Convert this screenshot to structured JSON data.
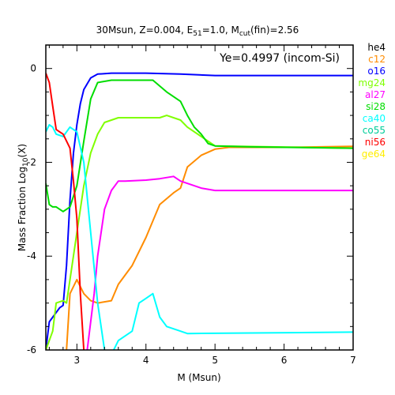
{
  "chart_data": {
    "type": "line",
    "title": {
      "pre": "30Msun, Z=0.004, E",
      "sub1": "51",
      "mid": "=1.0, M",
      "sub2": "cut",
      "post": "(fin)=2.56"
    },
    "annotation": "Ye=0.4997 (incom-Si)",
    "xlabel": "M (Msun)",
    "ylabel": {
      "pre": "Mass Fraction Log",
      "sub": "10",
      "post": "(X)"
    },
    "xlim": [
      2.55,
      7.0
    ],
    "ylim": [
      -6.0,
      0.5
    ],
    "xticks": [
      3,
      4,
      5,
      6,
      7
    ],
    "yticks": [
      -6,
      -4,
      -2,
      0
    ],
    "grid": false,
    "legend_position": "right, outside plot",
    "series": [
      {
        "name": "he4",
        "color": "#000000",
        "x": [],
        "y": []
      },
      {
        "name": "c12",
        "color": "#ff8c00",
        "x": [
          2.85,
          2.9,
          3.0,
          3.1,
          3.2,
          3.3,
          3.5,
          3.6,
          3.8,
          4.0,
          4.2,
          4.4,
          4.5,
          4.6,
          4.8,
          5.0,
          5.2,
          6.0,
          7.0
        ],
        "y": [
          -6.0,
          -4.8,
          -4.5,
          -4.8,
          -4.95,
          -5.0,
          -4.95,
          -4.6,
          -4.2,
          -3.6,
          -2.9,
          -2.65,
          -2.55,
          -2.1,
          -1.85,
          -1.72,
          -1.68,
          -1.68,
          -1.66
        ]
      },
      {
        "name": "o16",
        "color": "#0000ff",
        "x": [
          2.55,
          2.6,
          2.75,
          2.8,
          2.85,
          2.9,
          2.95,
          3.0,
          3.05,
          3.1,
          3.2,
          3.3,
          3.5,
          4.0,
          4.5,
          5.0,
          6.0,
          7.0
        ],
        "y": [
          -6.0,
          -5.4,
          -5.1,
          -5.05,
          -4.2,
          -2.8,
          -1.8,
          -1.2,
          -0.75,
          -0.45,
          -0.2,
          -0.12,
          -0.1,
          -0.1,
          -0.12,
          -0.15,
          -0.15,
          -0.15
        ]
      },
      {
        "name": "mg24",
        "color": "#7fff00",
        "x": [
          2.55,
          2.65,
          2.7,
          2.8,
          2.85,
          2.9,
          3.0,
          3.1,
          3.2,
          3.3,
          3.4,
          3.6,
          3.8,
          4.0,
          4.2,
          4.3,
          4.5,
          4.6,
          4.8,
          5.0,
          7.0
        ],
        "y": [
          -6.0,
          -5.6,
          -5.0,
          -4.95,
          -5.0,
          -4.5,
          -3.5,
          -2.5,
          -1.8,
          -1.4,
          -1.15,
          -1.05,
          -1.05,
          -1.05,
          -1.05,
          -1.0,
          -1.1,
          -1.25,
          -1.45,
          -1.65,
          -1.7
        ]
      },
      {
        "name": "al27",
        "color": "#ff00ff",
        "x": [
          3.15,
          3.25,
          3.3,
          3.4,
          3.5,
          3.6,
          3.7,
          4.0,
          4.2,
          4.4,
          4.5,
          4.8,
          5.0,
          6.0,
          7.0
        ],
        "y": [
          -6.0,
          -4.8,
          -4.0,
          -3.0,
          -2.6,
          -2.4,
          -2.4,
          -2.38,
          -2.35,
          -2.3,
          -2.4,
          -2.55,
          -2.6,
          -2.6,
          -2.6
        ]
      },
      {
        "name": "si28",
        "color": "#00dd00",
        "x": [
          2.55,
          2.6,
          2.65,
          2.7,
          2.8,
          2.9,
          3.0,
          3.1,
          3.2,
          3.3,
          3.5,
          4.0,
          4.1,
          4.3,
          4.5,
          4.6,
          4.7,
          4.8,
          4.9,
          5.0,
          5.5,
          7.0
        ],
        "y": [
          -2.45,
          -2.9,
          -2.95,
          -2.95,
          -3.05,
          -2.95,
          -2.5,
          -1.55,
          -0.65,
          -0.3,
          -0.25,
          -0.25,
          -0.25,
          -0.5,
          -0.7,
          -1.0,
          -1.25,
          -1.4,
          -1.6,
          -1.65,
          -1.67,
          -1.7
        ]
      },
      {
        "name": "ca40",
        "color": "#00ffff",
        "x": [
          2.55,
          2.6,
          2.65,
          2.7,
          2.8,
          2.9,
          3.0,
          3.1,
          3.2,
          3.3,
          3.4,
          3.5,
          3.6,
          3.8,
          3.9,
          4.0,
          4.1,
          4.2,
          4.3,
          4.5,
          4.6,
          7.0
        ],
        "y": [
          -1.35,
          -1.2,
          -1.25,
          -1.4,
          -1.45,
          -1.25,
          -1.35,
          -2.0,
          -3.5,
          -5.0,
          -6.0,
          -6.1,
          -5.8,
          -5.6,
          -5.0,
          -4.9,
          -4.8,
          -5.3,
          -5.5,
          -5.6,
          -5.65,
          -5.62
        ]
      },
      {
        "name": "co55",
        "color": "#00cc99",
        "x": [],
        "y": []
      },
      {
        "name": "ni56",
        "color": "#ff0000",
        "x": [
          2.55,
          2.6,
          2.65,
          2.7,
          2.75,
          2.8,
          2.9,
          2.95,
          3.0,
          3.05,
          3.1
        ],
        "y": [
          -0.1,
          -0.3,
          -0.8,
          -1.3,
          -1.35,
          -1.4,
          -1.7,
          -2.4,
          -3.2,
          -4.8,
          -6.0
        ]
      },
      {
        "name": "ge64",
        "color": "#ffee00",
        "x": [],
        "y": []
      }
    ]
  }
}
